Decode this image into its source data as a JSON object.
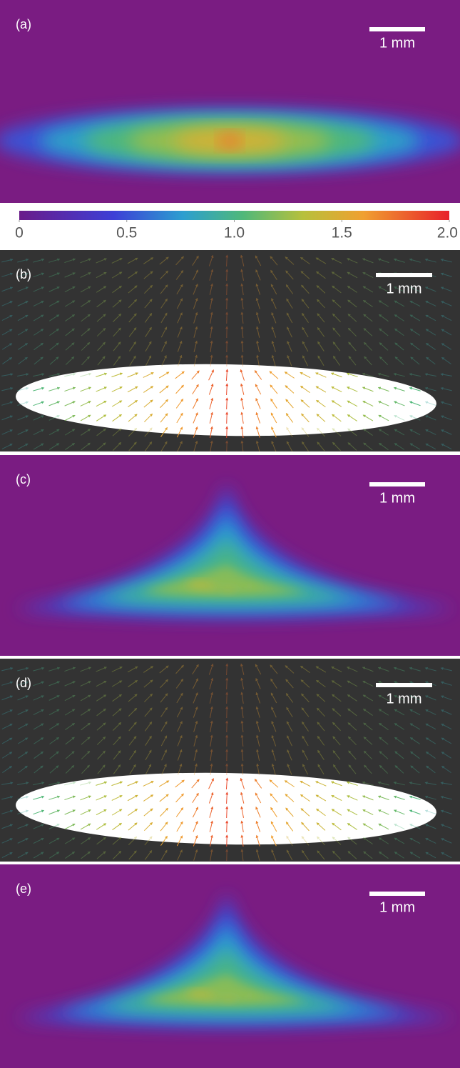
{
  "panels": [
    {
      "label": "(a)",
      "scale_bar": "1 mm"
    },
    {
      "label": "(b)",
      "scale_bar": "1 mm"
    },
    {
      "label": "(c)",
      "scale_bar": "1 mm"
    },
    {
      "label": "(d)",
      "scale_bar": "1 mm"
    },
    {
      "label": "(e)",
      "scale_bar": "1 mm"
    }
  ],
  "colorbar": {
    "lim": [
      0,
      2
    ],
    "ticks": [
      0,
      0.5,
      {
        "value": 1,
        "label": "1.0"
      },
      1.5,
      {
        "value": 2,
        "label": "2.0"
      }
    ]
  }
}
